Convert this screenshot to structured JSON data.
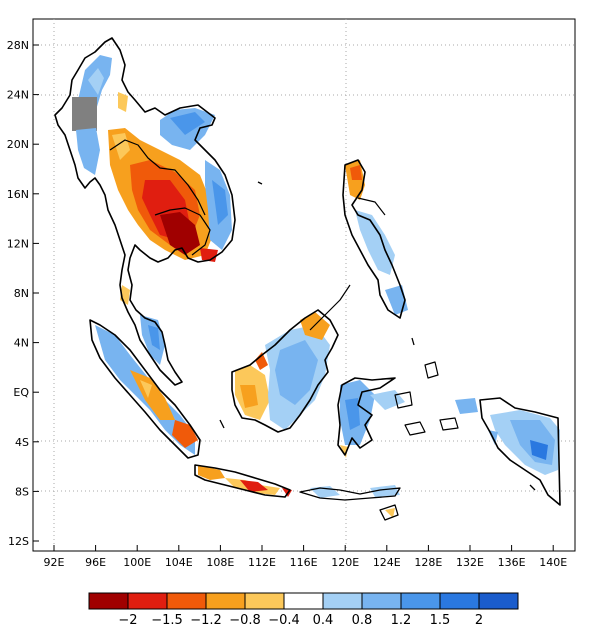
{
  "lat_ticks": [
    "28N",
    "24N",
    "20N",
    "16N",
    "12N",
    "8N",
    "4N",
    "EQ",
    "4S",
    "8S",
    "12S"
  ],
  "lon_ticks": [
    "92E",
    "96E",
    "100E",
    "104E",
    "108E",
    "112E",
    "116E",
    "120E",
    "124E",
    "128E",
    "132E",
    "136E",
    "140E"
  ],
  "colorbar": {
    "labels": [
      "−2",
      "−1.5",
      "−1.2",
      "−0.8",
      "−0.4",
      "0.4",
      "0.8",
      "1.2",
      "1.5",
      "2"
    ],
    "colors": [
      "#a00000",
      "#e01e10",
      "#f05a0a",
      "#f7a01e",
      "#fcc85a",
      "#ffffff",
      "#a4d0f5",
      "#78b4f0",
      "#4a96ea",
      "#2a78e0",
      "#1a5ccc"
    ]
  },
  "colors": {
    "land_outline": "#000000",
    "no_data": "#808080",
    "grid": "#aaaaaa"
  }
}
